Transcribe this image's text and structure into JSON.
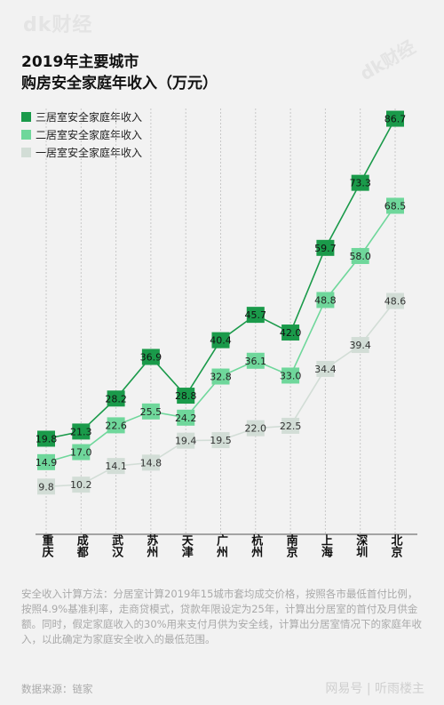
{
  "header": {
    "watermark": "dk财经",
    "title_line1": "2019年主要城市",
    "title_line2": "购房安全家庭年收入（万元）"
  },
  "chart_data": {
    "type": "line",
    "title": "2019年主要城市购房安全家庭年收入（万元）",
    "categories": [
      "重庆",
      "成都",
      "武汉",
      "苏州",
      "天津",
      "广州",
      "杭州",
      "南京",
      "上海",
      "深圳",
      "北京"
    ],
    "ylim": [
      0,
      100
    ],
    "grid": "vertical dashed",
    "legend_placement": "top-left",
    "series": [
      {
        "name": "三居室安全家庭年收入",
        "color": "#1a9a4a",
        "text_color": "#111111",
        "values": [
          19.8,
          21.3,
          28.2,
          36.9,
          28.8,
          40.4,
          45.7,
          42.0,
          59.7,
          73.3,
          86.7
        ]
      },
      {
        "name": "二居室安全家庭年收入",
        "color": "#6fd79b",
        "text_color": "#222222",
        "values": [
          14.9,
          17.0,
          22.6,
          25.5,
          24.2,
          32.8,
          36.1,
          33.0,
          48.8,
          58.0,
          68.5
        ]
      },
      {
        "name": "一居室安全家庭年收入",
        "color": "#d2ddd6",
        "text_color": "#333333",
        "values": [
          9.8,
          10.2,
          14.1,
          14.8,
          19.4,
          19.5,
          22.0,
          22.5,
          34.4,
          39.4,
          48.6
        ]
      }
    ]
  },
  "footer": {
    "note": "安全收入计算方法：分居室计算2019年15城市套均成交价格，按照各市最低首付比例，按照4.9%基准利率，走商贷模式，贷款年限设定为25年，计算出分居室的首付及月供金额。同时，假定家庭收入的30%用来支付月供为安全线，计算出分居室情况下的家庭年收入，以此确定为家庭安全收入的最低范围。",
    "source": "数据来源：链家",
    "brand": "网易号 | 听雨楼主"
  }
}
